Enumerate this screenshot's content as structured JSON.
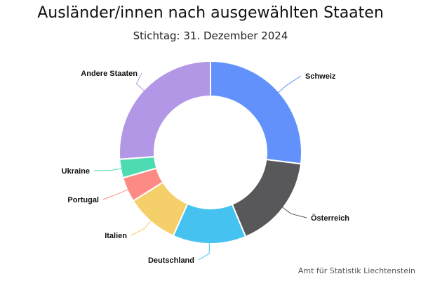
{
  "chart_data": {
    "type": "pie",
    "title": "Ausländer/innen nach ausgewählten Staaten",
    "subtitle": "Stichtag: 31. Dezember 2024",
    "source": "Amt für Statistik Liechtenstein",
    "legend": "labels around chart",
    "categories": [
      "Schweiz",
      "Österreich",
      "Deutschland",
      "Italien",
      "Portugal",
      "Ukraine",
      "Andere Staaten"
    ],
    "values": [
      27.0,
      16.7,
      13.0,
      9.4,
      4.4,
      3.3,
      26.2
    ],
    "colors": [
      "#6391fc",
      "#58585a",
      "#45c2f0",
      "#f4cf6a",
      "#fe8a86",
      "#4ddbb2",
      "#b197e5"
    ]
  }
}
